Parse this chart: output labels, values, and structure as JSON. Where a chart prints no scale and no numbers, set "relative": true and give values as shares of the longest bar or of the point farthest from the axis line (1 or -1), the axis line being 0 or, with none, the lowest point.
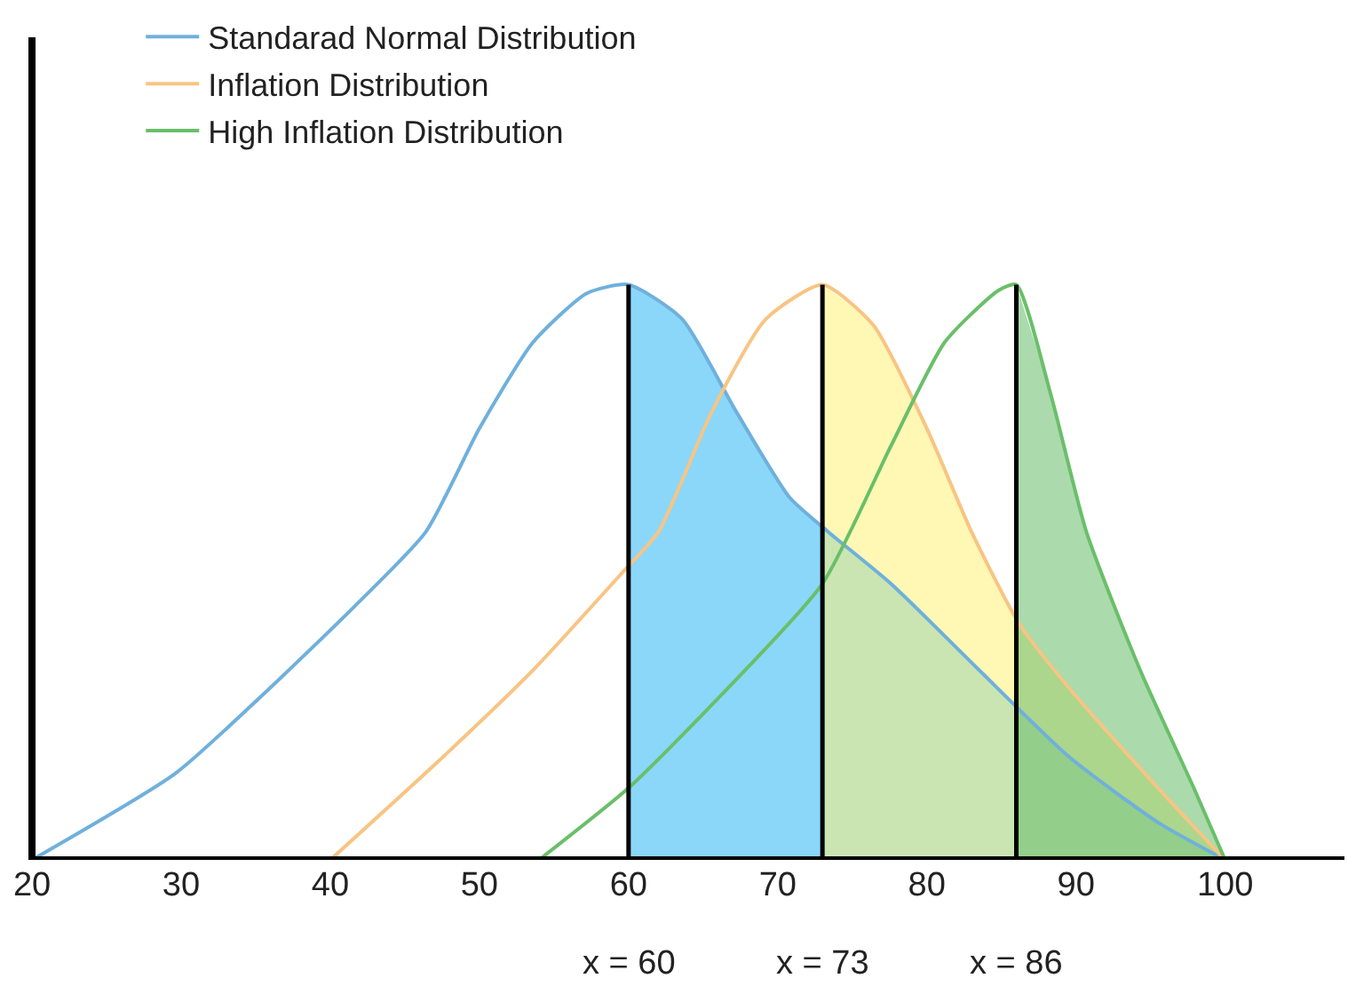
{
  "chart_data": {
    "type": "line",
    "relative": true,
    "xlim": [
      20,
      108
    ],
    "xticks": [
      20,
      30,
      40,
      50,
      60,
      70,
      80,
      90,
      100
    ],
    "series": [
      {
        "type": "area",
        "color": "#29b6f6",
        "x": [
          60,
          63.6,
          67.2,
          70.8,
          73.4,
          77.6,
          83.5,
          89.5,
          95.5,
          100
        ],
        "values": [
          1,
          0.94,
          0.78,
          0.63,
          0.57,
          0.48,
          0.33,
          0.18,
          0.065,
          0
        ]
      },
      {
        "type": "area",
        "color": "#fff176",
        "x": [
          73,
          76.4,
          80,
          83,
          86.2,
          89.5,
          95.5,
          100
        ],
        "values": [
          1,
          0.93,
          0.75,
          0.57,
          0.41,
          0.3,
          0.125,
          0
        ]
      },
      {
        "type": "area",
        "color": "#66bb6a",
        "x": [
          86,
          88.3,
          90.7,
          94.3,
          97.9,
          100
        ],
        "values": [
          1,
          0.81,
          0.57,
          0.33,
          0.125,
          0
        ]
      },
      {
        "name": "Standarad Normal Distribution",
        "color": "#6fb0dc",
        "x": [
          20,
          29.6,
          35.6,
          41.6,
          46.4,
          50,
          53.6,
          57.2,
          60,
          63.6,
          67.2,
          70.8,
          73.4,
          77.6,
          83.5,
          89.5,
          95.5,
          100
        ],
        "values": [
          0,
          0.15,
          0.29,
          0.44,
          0.57,
          0.75,
          0.9,
          0.985,
          1,
          0.94,
          0.78,
          0.63,
          0.57,
          0.48,
          0.33,
          0.18,
          0.065,
          0
        ]
      },
      {
        "name": "Inflation Distribution",
        "color": "#f8c483",
        "x": [
          40,
          47.6,
          53.6,
          59.6,
          62,
          65.6,
          69.2,
          73,
          76.4,
          80,
          83,
          86.2,
          89.5,
          95.5,
          100
        ],
        "values": [
          0,
          0.18,
          0.33,
          0.5,
          0.57,
          0.78,
          0.94,
          1,
          0.93,
          0.75,
          0.57,
          0.41,
          0.3,
          0.125,
          0
        ]
      },
      {
        "name": "High Inflation Distribution",
        "color": "#6abf69",
        "x": [
          54,
          60,
          65.6,
          73,
          77.6,
          81.2,
          84.8,
          86,
          88.3,
          90.7,
          94.3,
          97.9,
          100
        ],
        "values": [
          0,
          0.125,
          0.27,
          0.48,
          0.72,
          0.9,
          0.99,
          1,
          0.81,
          0.57,
          0.33,
          0.125,
          0
        ]
      }
    ],
    "ref_lines": [
      {
        "axis": "x",
        "value": 60,
        "label": "x = 60",
        "color": "#000000"
      },
      {
        "axis": "x",
        "value": 73,
        "label": "x = 73",
        "color": "#000000"
      },
      {
        "axis": "x",
        "value": 86,
        "label": "x = 86",
        "color": "#000000"
      }
    ],
    "legend": "top left",
    "grid": false,
    "tick_labels": "x",
    "marker": "none",
    "line_style": "solid"
  }
}
